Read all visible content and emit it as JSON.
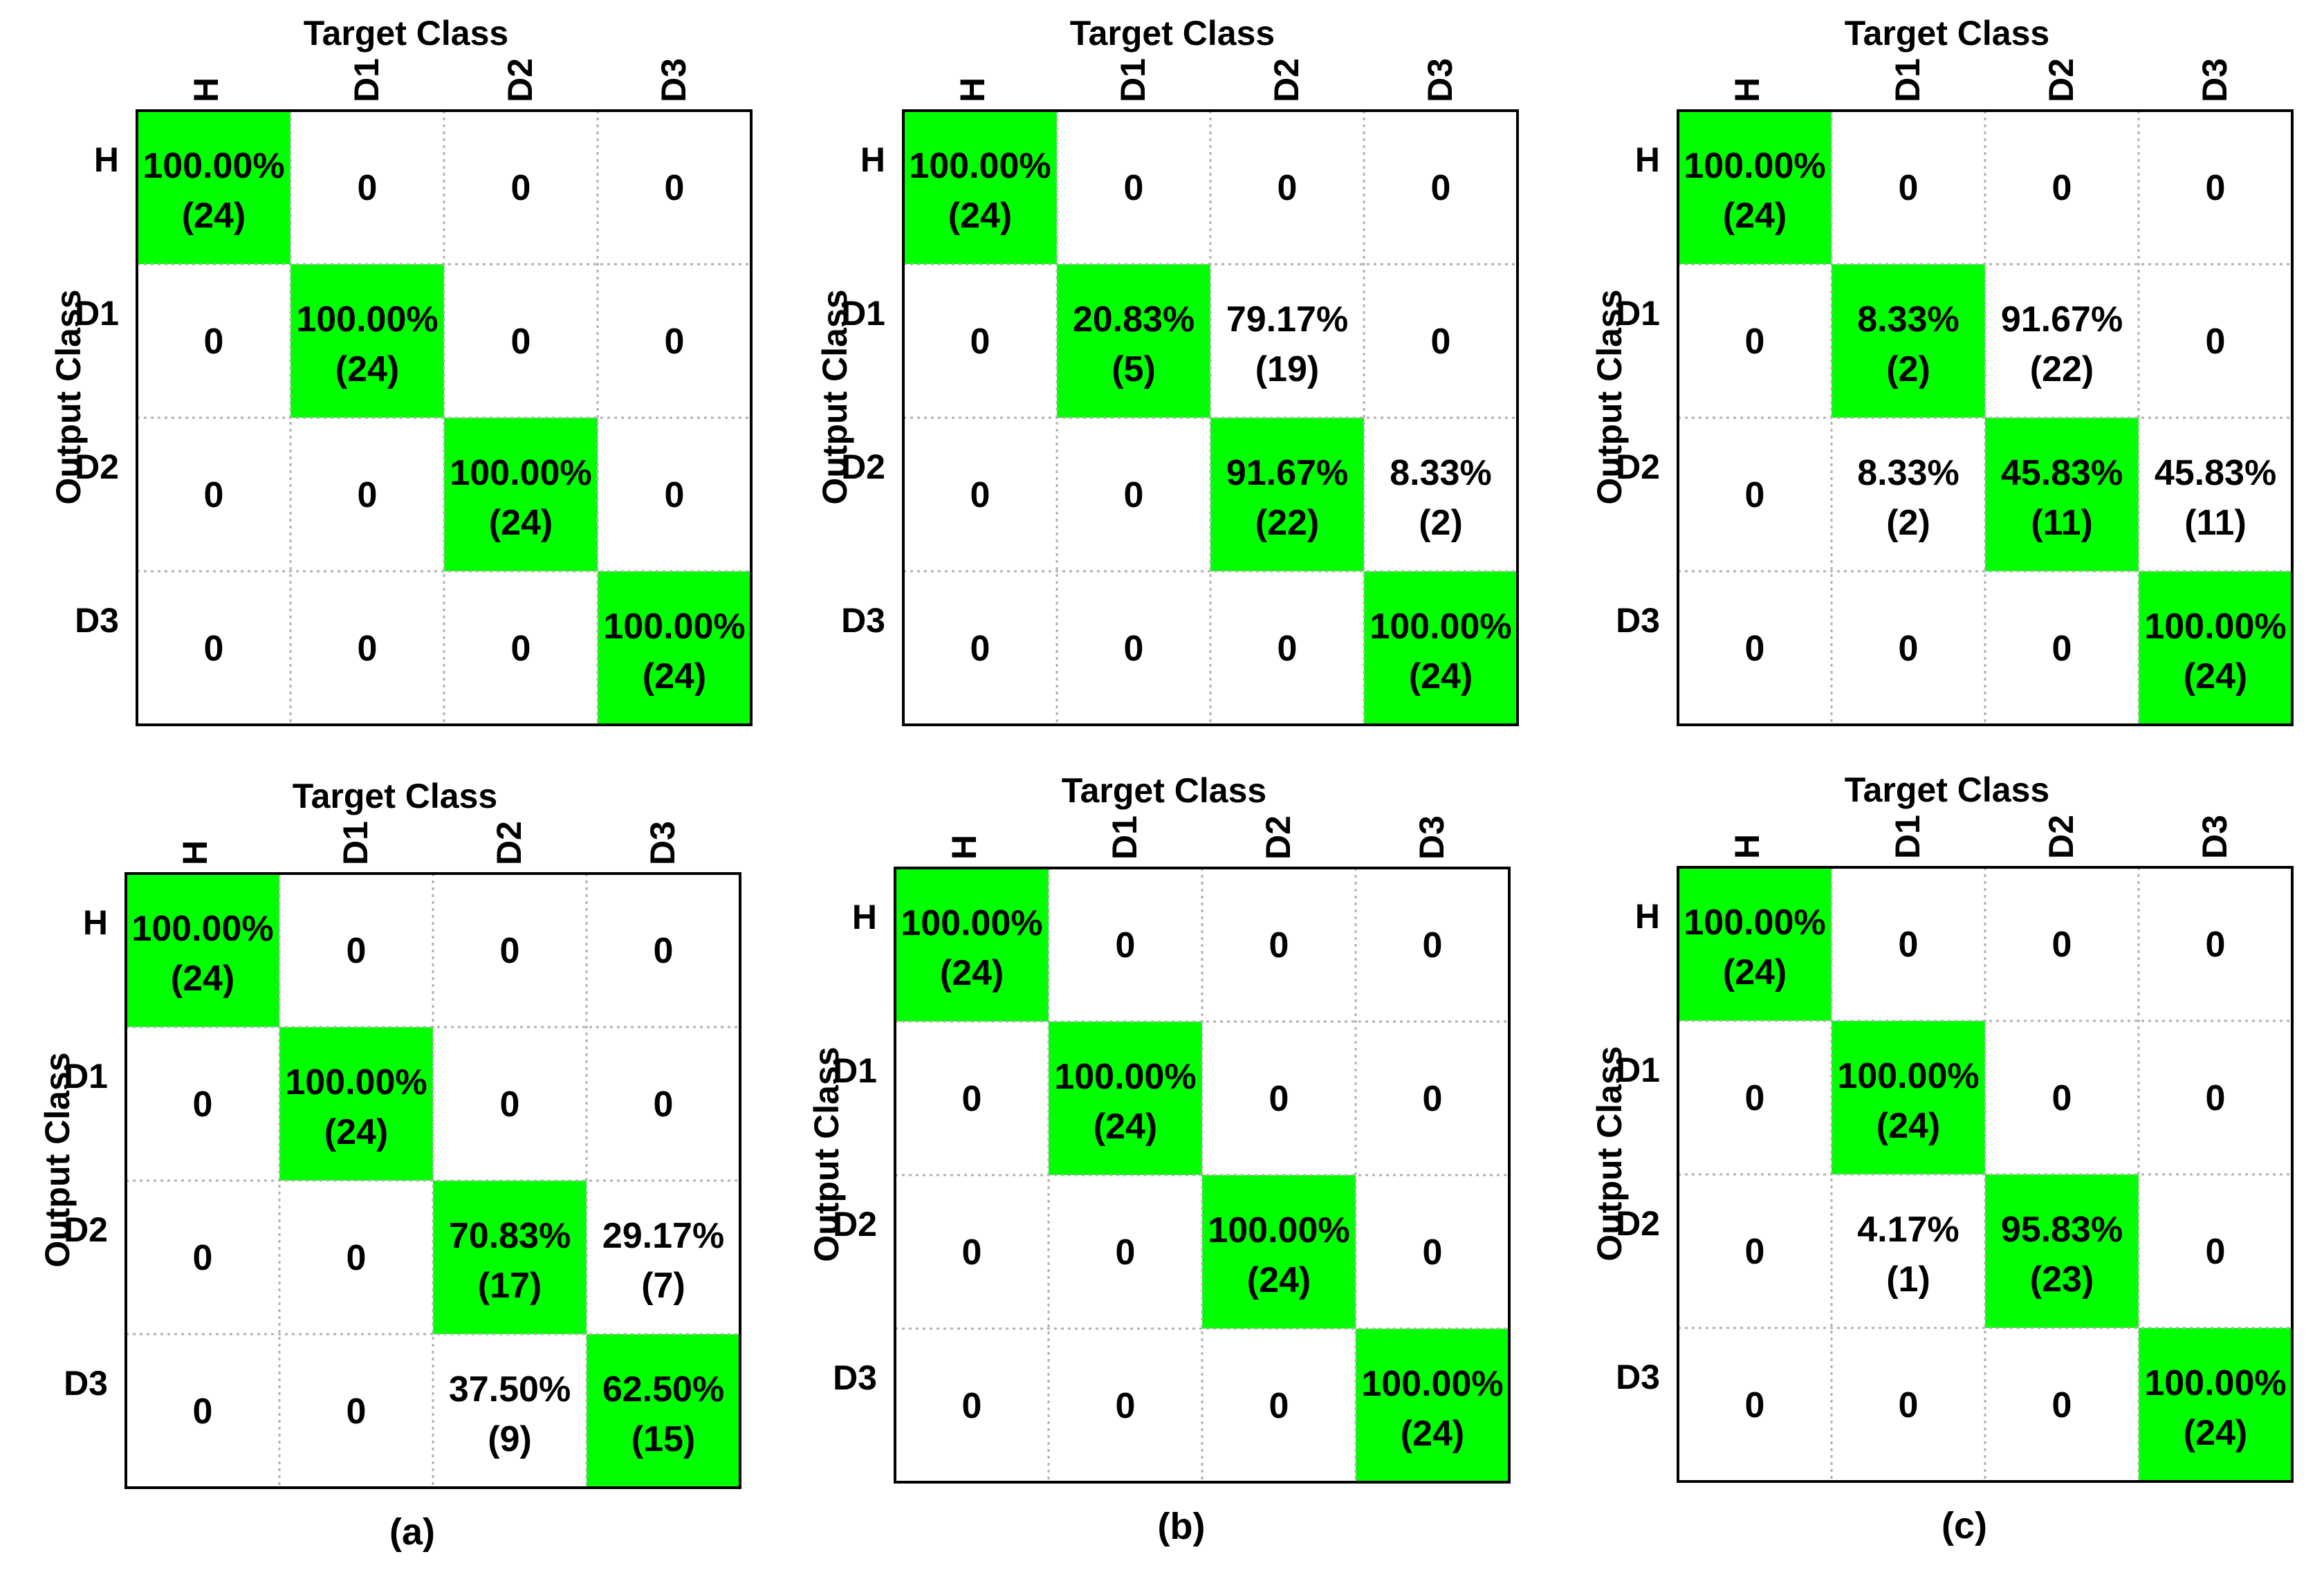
{
  "figure": {
    "background": "#ffffff",
    "highlight_color": "#00ff00",
    "grid_color": "#b0b0b0"
  },
  "chart_data": [
    {
      "type": "heatmap",
      "title": "Target Class",
      "xlabel": "Target Class",
      "ylabel": "Output Class",
      "categories": [
        "H",
        "D1",
        "D2",
        "D3"
      ],
      "cells": [
        [
          {
            "pct": "100.00%",
            "count": "(24)"
          },
          {
            "pct": "0",
            "count": ""
          },
          {
            "pct": "0",
            "count": ""
          },
          {
            "pct": "0",
            "count": ""
          }
        ],
        [
          {
            "pct": "0",
            "count": ""
          },
          {
            "pct": "100.00%",
            "count": "(24)"
          },
          {
            "pct": "0",
            "count": ""
          },
          {
            "pct": "0",
            "count": ""
          }
        ],
        [
          {
            "pct": "0",
            "count": ""
          },
          {
            "pct": "0",
            "count": ""
          },
          {
            "pct": "100.00%",
            "count": "(24)"
          },
          {
            "pct": "0",
            "count": ""
          }
        ],
        [
          {
            "pct": "0",
            "count": ""
          },
          {
            "pct": "0",
            "count": ""
          },
          {
            "pct": "0",
            "count": ""
          },
          {
            "pct": "100.00%",
            "count": "(24)"
          }
        ]
      ]
    },
    {
      "type": "heatmap",
      "title": "Target Class",
      "xlabel": "Target Class",
      "ylabel": "Output Class",
      "categories": [
        "H",
        "D1",
        "D2",
        "D3"
      ],
      "cells": [
        [
          {
            "pct": "100.00%",
            "count": "(24)"
          },
          {
            "pct": "0",
            "count": ""
          },
          {
            "pct": "0",
            "count": ""
          },
          {
            "pct": "0",
            "count": ""
          }
        ],
        [
          {
            "pct": "0",
            "count": ""
          },
          {
            "pct": "20.83%",
            "count": "(5)"
          },
          {
            "pct": "79.17%",
            "count": "(19)"
          },
          {
            "pct": "0",
            "count": ""
          }
        ],
        [
          {
            "pct": "0",
            "count": ""
          },
          {
            "pct": "0",
            "count": ""
          },
          {
            "pct": "91.67%",
            "count": "(22)"
          },
          {
            "pct": "8.33%",
            "count": "(2)"
          }
        ],
        [
          {
            "pct": "0",
            "count": ""
          },
          {
            "pct": "0",
            "count": ""
          },
          {
            "pct": "0",
            "count": ""
          },
          {
            "pct": "100.00%",
            "count": "(24)"
          }
        ]
      ]
    },
    {
      "type": "heatmap",
      "title": "Target Class",
      "xlabel": "Target Class",
      "ylabel": "Output Class",
      "categories": [
        "H",
        "D1",
        "D2",
        "D3"
      ],
      "cells": [
        [
          {
            "pct": "100.00%",
            "count": "(24)"
          },
          {
            "pct": "0",
            "count": ""
          },
          {
            "pct": "0",
            "count": ""
          },
          {
            "pct": "0",
            "count": ""
          }
        ],
        [
          {
            "pct": "0",
            "count": ""
          },
          {
            "pct": "8.33%",
            "count": "(2)"
          },
          {
            "pct": "91.67%",
            "count": "(22)"
          },
          {
            "pct": "0",
            "count": ""
          }
        ],
        [
          {
            "pct": "0",
            "count": ""
          },
          {
            "pct": "8.33%",
            "count": "(2)"
          },
          {
            "pct": "45.83%",
            "count": "(11)"
          },
          {
            "pct": "45.83%",
            "count": "(11)"
          }
        ],
        [
          {
            "pct": "0",
            "count": ""
          },
          {
            "pct": "0",
            "count": ""
          },
          {
            "pct": "0",
            "count": ""
          },
          {
            "pct": "100.00%",
            "count": "(24)"
          }
        ]
      ]
    },
    {
      "type": "heatmap",
      "title": "Target Class",
      "xlabel": "Target Class",
      "ylabel": "Output Class",
      "categories": [
        "H",
        "D1",
        "D2",
        "D3"
      ],
      "cells": [
        [
          {
            "pct": "100.00%",
            "count": "(24)"
          },
          {
            "pct": "0",
            "count": ""
          },
          {
            "pct": "0",
            "count": ""
          },
          {
            "pct": "0",
            "count": ""
          }
        ],
        [
          {
            "pct": "0",
            "count": ""
          },
          {
            "pct": "100.00%",
            "count": "(24)"
          },
          {
            "pct": "0",
            "count": ""
          },
          {
            "pct": "0",
            "count": ""
          }
        ],
        [
          {
            "pct": "0",
            "count": ""
          },
          {
            "pct": "0",
            "count": ""
          },
          {
            "pct": "70.83%",
            "count": "(17)"
          },
          {
            "pct": "29.17%",
            "count": "(7)"
          }
        ],
        [
          {
            "pct": "0",
            "count": ""
          },
          {
            "pct": "0",
            "count": ""
          },
          {
            "pct": "37.50%",
            "count": "(9)"
          },
          {
            "pct": "62.50%",
            "count": "(15)"
          }
        ]
      ],
      "panel_label": "(a)"
    },
    {
      "type": "heatmap",
      "title": "Target Class",
      "xlabel": "Target Class",
      "ylabel": "Output Class",
      "categories": [
        "H",
        "D1",
        "D2",
        "D3"
      ],
      "cells": [
        [
          {
            "pct": "100.00%",
            "count": "(24)"
          },
          {
            "pct": "0",
            "count": ""
          },
          {
            "pct": "0",
            "count": ""
          },
          {
            "pct": "0",
            "count": ""
          }
        ],
        [
          {
            "pct": "0",
            "count": ""
          },
          {
            "pct": "100.00%",
            "count": "(24)"
          },
          {
            "pct": "0",
            "count": ""
          },
          {
            "pct": "0",
            "count": ""
          }
        ],
        [
          {
            "pct": "0",
            "count": ""
          },
          {
            "pct": "0",
            "count": ""
          },
          {
            "pct": "100.00%",
            "count": "(24)"
          },
          {
            "pct": "0",
            "count": ""
          }
        ],
        [
          {
            "pct": "0",
            "count": ""
          },
          {
            "pct": "0",
            "count": ""
          },
          {
            "pct": "0",
            "count": ""
          },
          {
            "pct": "100.00%",
            "count": "(24)"
          }
        ]
      ],
      "panel_label": "(b)"
    },
    {
      "type": "heatmap",
      "title": "Target Class",
      "xlabel": "Target Class",
      "ylabel": "Output Class",
      "categories": [
        "H",
        "D1",
        "D2",
        "D3"
      ],
      "cells": [
        [
          {
            "pct": "100.00%",
            "count": "(24)"
          },
          {
            "pct": "0",
            "count": ""
          },
          {
            "pct": "0",
            "count": ""
          },
          {
            "pct": "0",
            "count": ""
          }
        ],
        [
          {
            "pct": "0",
            "count": ""
          },
          {
            "pct": "100.00%",
            "count": "(24)"
          },
          {
            "pct": "0",
            "count": ""
          },
          {
            "pct": "0",
            "count": ""
          }
        ],
        [
          {
            "pct": "0",
            "count": ""
          },
          {
            "pct": "4.17%",
            "count": "(1)"
          },
          {
            "pct": "95.83%",
            "count": "(23)"
          },
          {
            "pct": "0",
            "count": ""
          }
        ],
        [
          {
            "pct": "0",
            "count": ""
          },
          {
            "pct": "0",
            "count": ""
          },
          {
            "pct": "0",
            "count": ""
          },
          {
            "pct": "100.00%",
            "count": "(24)"
          }
        ]
      ],
      "panel_label": "(c)"
    }
  ]
}
